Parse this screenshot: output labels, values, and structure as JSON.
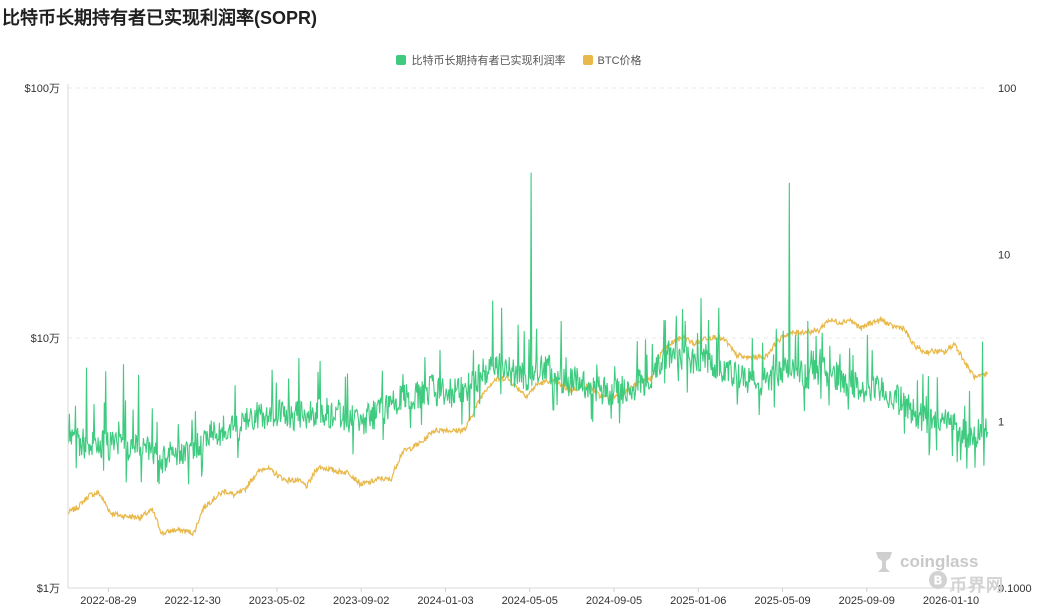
{
  "page": {
    "title": "比特币长期持有者已实现利润率(SOPR)",
    "watermark_brand": "coinglass",
    "watermark_site": "币界网"
  },
  "colors": {
    "sopr": "#3ecb7f",
    "price": "#e8b84a",
    "grid": "#e9e9e9",
    "axis_text": "#333333"
  },
  "chart_data": {
    "type": "line",
    "title": "比特币长期持有者已实现利润率(SOPR)",
    "legend": {
      "placement": "top-center",
      "entries": [
        {
          "name": "比特币长期持有者已实现利润率",
          "color": "#3ecb7f"
        },
        {
          "name": "BTC价格",
          "color": "#e8b84a"
        }
      ]
    },
    "grid": {
      "horizontal": true,
      "vertical": false
    },
    "x_axis": {
      "type": "date",
      "range": [
        "2022-07-01",
        "2026-03-05"
      ],
      "tick_labels": [
        "2022-08-29",
        "2022-12-30",
        "2023-05-02",
        "2023-09-02",
        "2024-01-03",
        "2024-05-05",
        "2024-09-05",
        "2025-01-06",
        "2025-05-09",
        "2025-09-09",
        "2026-01-10"
      ]
    },
    "y_axis_left": {
      "scale": "log",
      "range": [
        10000,
        1000000
      ],
      "ticks": [
        10000,
        100000,
        1000000
      ],
      "tick_labels": [
        "$1万",
        "$10万",
        "$100万"
      ]
    },
    "y_axis_right": {
      "scale": "log",
      "range": [
        0.1,
        100
      ],
      "ticks": [
        0.1,
        1,
        10,
        100
      ],
      "tick_labels": [
        "0.1000",
        "1",
        "10",
        "100"
      ]
    },
    "series": [
      {
        "name": "比特币长期持有者已实现利润率",
        "axis": "right",
        "color": "#3ecb7f",
        "points": [
          [
            "2022-07-01",
            0.8
          ],
          [
            "2022-07-15",
            0.76
          ],
          [
            "2022-08-01",
            0.72
          ],
          [
            "2022-08-15",
            0.74
          ],
          [
            "2022-09-01",
            0.7
          ],
          [
            "2022-09-15",
            0.74
          ],
          [
            "2022-10-01",
            0.7
          ],
          [
            "2022-10-15",
            0.72
          ],
          [
            "2022-11-01",
            0.66
          ],
          [
            "2022-11-15",
            0.6
          ],
          [
            "2022-12-01",
            0.64
          ],
          [
            "2022-12-15",
            0.66
          ],
          [
            "2023-01-01",
            0.68
          ],
          [
            "2023-01-15",
            0.78
          ],
          [
            "2023-02-01",
            0.85
          ],
          [
            "2023-02-15",
            0.88
          ],
          [
            "2023-03-01",
            0.9
          ],
          [
            "2023-03-15",
            1.0
          ],
          [
            "2023-04-01",
            1.05
          ],
          [
            "2023-04-15",
            1.1
          ],
          [
            "2023-05-01",
            1.12
          ],
          [
            "2023-05-15",
            1.1
          ],
          [
            "2023-06-01",
            1.08
          ],
          [
            "2023-06-15",
            1.1
          ],
          [
            "2023-07-01",
            1.15
          ],
          [
            "2023-07-15",
            1.12
          ],
          [
            "2023-08-01",
            1.1
          ],
          [
            "2023-08-15",
            1.05
          ],
          [
            "2023-09-01",
            1.0
          ],
          [
            "2023-09-15",
            1.05
          ],
          [
            "2023-10-01",
            1.15
          ],
          [
            "2023-10-15",
            1.25
          ],
          [
            "2023-11-01",
            1.35
          ],
          [
            "2023-11-15",
            1.4
          ],
          [
            "2023-12-01",
            1.5
          ],
          [
            "2023-12-15",
            1.55
          ],
          [
            "2024-01-01",
            1.5
          ],
          [
            "2024-01-15",
            1.45
          ],
          [
            "2024-02-01",
            1.6
          ],
          [
            "2024-02-15",
            1.75
          ],
          [
            "2024-03-01",
            2.0
          ],
          [
            "2024-03-15",
            2.3
          ],
          [
            "2024-04-01",
            2.1
          ],
          [
            "2024-04-15",
            1.9
          ],
          [
            "2024-05-01",
            1.85
          ],
          [
            "2024-05-15",
            2.0
          ],
          [
            "2024-06-01",
            2.05
          ],
          [
            "2024-06-15",
            1.85
          ],
          [
            "2024-07-01",
            1.7
          ],
          [
            "2024-07-15",
            1.75
          ],
          [
            "2024-08-01",
            1.65
          ],
          [
            "2024-08-15",
            1.55
          ],
          [
            "2024-09-01",
            1.5
          ],
          [
            "2024-09-15",
            1.55
          ],
          [
            "2024-10-01",
            1.6
          ],
          [
            "2024-10-15",
            1.7
          ],
          [
            "2024-11-01",
            1.9
          ],
          [
            "2024-11-15",
            2.4
          ],
          [
            "2024-12-01",
            2.6
          ],
          [
            "2024-12-15",
            2.5
          ],
          [
            "2025-01-01",
            2.3
          ],
          [
            "2025-01-15",
            2.4
          ],
          [
            "2025-02-01",
            2.2
          ],
          [
            "2025-02-15",
            2.0
          ],
          [
            "2025-03-01",
            1.85
          ],
          [
            "2025-03-15",
            1.75
          ],
          [
            "2025-04-01",
            1.7
          ],
          [
            "2025-04-15",
            1.75
          ],
          [
            "2025-05-01",
            1.9
          ],
          [
            "2025-05-15",
            2.0
          ],
          [
            "2025-06-01",
            1.95
          ],
          [
            "2025-06-15",
            1.9
          ],
          [
            "2025-07-01",
            1.95
          ],
          [
            "2025-07-15",
            2.0
          ],
          [
            "2025-08-01",
            1.8
          ],
          [
            "2025-08-15",
            1.7
          ],
          [
            "2025-09-01",
            1.55
          ],
          [
            "2025-09-15",
            1.5
          ],
          [
            "2025-10-01",
            1.55
          ],
          [
            "2025-10-15",
            1.4
          ],
          [
            "2025-11-01",
            1.3
          ],
          [
            "2025-11-15",
            1.15
          ],
          [
            "2025-12-01",
            1.05
          ],
          [
            "2025-12-15",
            0.98
          ],
          [
            "2026-01-01",
            1.0
          ],
          [
            "2026-01-15",
            0.95
          ],
          [
            "2026-02-01",
            0.85
          ],
          [
            "2026-02-15",
            0.82
          ],
          [
            "2026-03-05",
            0.9
          ]
        ],
        "spikes": [
          [
            "2022-07-28",
            2.1
          ],
          [
            "2022-08-25",
            2.0
          ],
          [
            "2022-09-20",
            2.2
          ],
          [
            "2022-10-12",
            1.9
          ],
          [
            "2023-06-03",
            2.4
          ],
          [
            "2023-07-04",
            2.3
          ],
          [
            "2024-03-12",
            5.3
          ],
          [
            "2024-03-25",
            4.8
          ],
          [
            "2024-04-18",
            3.8
          ],
          [
            "2024-05-07",
            31.0
          ],
          [
            "2024-06-20",
            4.0
          ],
          [
            "2024-12-05",
            4.3
          ],
          [
            "2024-12-18",
            4.0
          ],
          [
            "2025-01-10",
            5.5
          ],
          [
            "2025-02-05",
            4.8
          ],
          [
            "2025-05-10",
            3.5
          ],
          [
            "2025-05-19",
            27.0
          ],
          [
            "2025-06-15",
            4.0
          ],
          [
            "2025-09-10",
            3.3
          ],
          [
            "2026-02-25",
            3.0
          ]
        ]
      },
      {
        "name": "BTC价格",
        "axis": "left",
        "color": "#e8b84a",
        "points": [
          [
            "2022-07-01",
            20000
          ],
          [
            "2022-07-15",
            21000
          ],
          [
            "2022-08-01",
            23500
          ],
          [
            "2022-08-15",
            24000
          ],
          [
            "2022-09-01",
            20000
          ],
          [
            "2022-09-15",
            19500
          ],
          [
            "2022-10-01",
            19300
          ],
          [
            "2022-10-15",
            19200
          ],
          [
            "2022-11-01",
            20500
          ],
          [
            "2022-11-15",
            16500
          ],
          [
            "2022-12-01",
            17000
          ],
          [
            "2022-12-15",
            17000
          ],
          [
            "2023-01-01",
            16600
          ],
          [
            "2023-01-15",
            21000
          ],
          [
            "2023-02-01",
            23000
          ],
          [
            "2023-02-15",
            24500
          ],
          [
            "2023-03-01",
            23500
          ],
          [
            "2023-03-15",
            24500
          ],
          [
            "2023-04-01",
            28500
          ],
          [
            "2023-04-15",
            30500
          ],
          [
            "2023-05-01",
            28500
          ],
          [
            "2023-05-15",
            27000
          ],
          [
            "2023-06-01",
            27000
          ],
          [
            "2023-06-15",
            25500
          ],
          [
            "2023-07-01",
            30500
          ],
          [
            "2023-07-15",
            30000
          ],
          [
            "2023-08-01",
            29200
          ],
          [
            "2023-08-15",
            29000
          ],
          [
            "2023-09-01",
            26000
          ],
          [
            "2023-09-15",
            26500
          ],
          [
            "2023-10-01",
            27500
          ],
          [
            "2023-10-15",
            27000
          ],
          [
            "2023-11-01",
            35000
          ],
          [
            "2023-11-15",
            36500
          ],
          [
            "2023-12-01",
            38500
          ],
          [
            "2023-12-15",
            42500
          ],
          [
            "2024-01-01",
            43000
          ],
          [
            "2024-01-15",
            42500
          ],
          [
            "2024-02-01",
            43000
          ],
          [
            "2024-02-15",
            52000
          ],
          [
            "2024-03-01",
            62000
          ],
          [
            "2024-03-15",
            68000
          ],
          [
            "2024-04-01",
            69500
          ],
          [
            "2024-04-15",
            64000
          ],
          [
            "2024-05-01",
            58500
          ],
          [
            "2024-05-15",
            65000
          ],
          [
            "2024-06-01",
            67500
          ],
          [
            "2024-06-15",
            66000
          ],
          [
            "2024-07-01",
            62000
          ],
          [
            "2024-07-15",
            63000
          ],
          [
            "2024-08-01",
            64500
          ],
          [
            "2024-08-15",
            58500
          ],
          [
            "2024-09-01",
            57500
          ],
          [
            "2024-09-15",
            60000
          ],
          [
            "2024-10-01",
            63500
          ],
          [
            "2024-10-15",
            67000
          ],
          [
            "2024-11-01",
            69500
          ],
          [
            "2024-11-15",
            90000
          ],
          [
            "2024-12-01",
            96500
          ],
          [
            "2024-12-15",
            101000
          ],
          [
            "2025-01-01",
            94500
          ],
          [
            "2025-01-15",
            100000
          ],
          [
            "2025-02-01",
            101000
          ],
          [
            "2025-02-15",
            97500
          ],
          [
            "2025-03-01",
            86000
          ],
          [
            "2025-03-15",
            83500
          ],
          [
            "2025-04-01",
            84000
          ],
          [
            "2025-04-15",
            84500
          ],
          [
            "2025-05-01",
            96500
          ],
          [
            "2025-05-15",
            103500
          ],
          [
            "2025-06-01",
            105500
          ],
          [
            "2025-06-15",
            106000
          ],
          [
            "2025-07-01",
            107000
          ],
          [
            "2025-07-15",
            118000
          ],
          [
            "2025-08-01",
            115500
          ],
          [
            "2025-08-15",
            118500
          ],
          [
            "2025-09-01",
            109000
          ],
          [
            "2025-09-15",
            115500
          ],
          [
            "2025-10-01",
            118000
          ],
          [
            "2025-10-15",
            111500
          ],
          [
            "2025-11-01",
            110000
          ],
          [
            "2025-11-15",
            94500
          ],
          [
            "2025-12-01",
            88000
          ],
          [
            "2025-12-15",
            88500
          ],
          [
            "2026-01-01",
            87500
          ],
          [
            "2026-01-15",
            95000
          ],
          [
            "2026-02-01",
            78000
          ],
          [
            "2026-02-15",
            69000
          ],
          [
            "2026-03-05",
            72000
          ]
        ]
      }
    ]
  }
}
